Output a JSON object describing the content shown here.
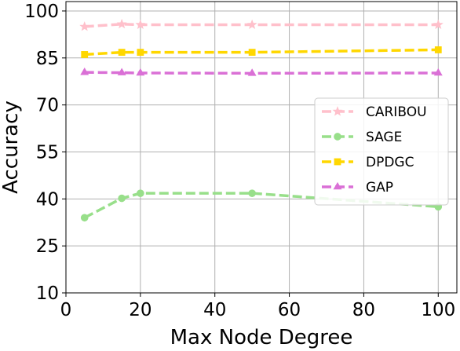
{
  "chart_data": {
    "type": "line",
    "title": "",
    "xlabel": "Max Node Degree",
    "ylabel": "Accuracy",
    "xlim": [
      0,
      105
    ],
    "ylim": [
      10,
      103
    ],
    "xticks": [
      0,
      20,
      40,
      60,
      80,
      100
    ],
    "yticks": [
      10,
      25,
      40,
      55,
      70,
      85,
      100
    ],
    "grid": true,
    "legend_position": "center-right",
    "x": [
      5,
      15,
      20,
      50,
      100
    ],
    "series": [
      {
        "name": "CARIBOU",
        "color": "#ffc0cb",
        "marker": "star",
        "values": [
          95.0,
          95.8,
          95.6,
          95.6,
          95.6
        ]
      },
      {
        "name": "SAGE",
        "color": "#98df8a",
        "marker": "circle",
        "values": [
          34.0,
          40.2,
          41.8,
          41.8,
          37.5
        ]
      },
      {
        "name": "DPDGC",
        "color": "#ffd700",
        "marker": "square",
        "values": [
          86.1,
          86.8,
          86.8,
          86.8,
          87.6
        ]
      },
      {
        "name": "GAP",
        "color": "#da70d6",
        "marker": "triangle",
        "values": [
          80.4,
          80.3,
          80.2,
          80.1,
          80.2
        ]
      }
    ]
  }
}
